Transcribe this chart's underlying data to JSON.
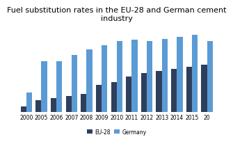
{
  "title": "Fuel substitution rates in the EU-28 and German cement\nindustry",
  "categories": [
    "2000",
    "2005",
    "2006",
    "2007",
    "2008",
    "2009",
    "2010",
    "2011",
    "2012",
    "2013",
    "2014",
    "2015",
    "20"
  ],
  "eu28": [
    5,
    11,
    13,
    15,
    17,
    25,
    28,
    33,
    36,
    38,
    40,
    42,
    44
  ],
  "germany": [
    18,
    47,
    47,
    53,
    58,
    62,
    66,
    67,
    66,
    68,
    70,
    72,
    66
  ],
  "eu28_color": "#2E3F5C",
  "germany_color": "#5B9BD5",
  "background_color": "#FFFFFF",
  "legend_labels": [
    "EU-28",
    "Germany"
  ],
  "bar_width": 0.38,
  "ylim": [
    0,
    80
  ],
  "grid_color": "#D9D9D9",
  "title_fontsize": 8.0,
  "tick_fontsize": 5.5,
  "legend_fontsize": 5.5
}
